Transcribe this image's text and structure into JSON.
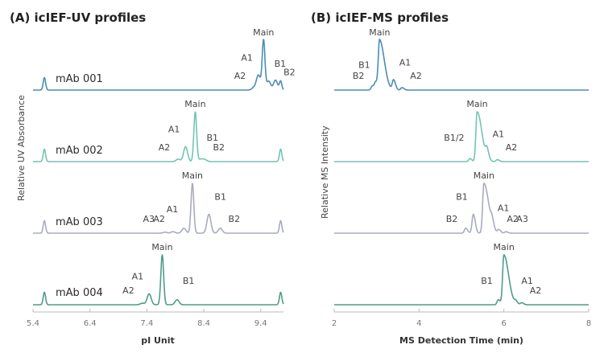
{
  "chart_data": [
    {
      "type": "line",
      "title": "(A) icIEF-UV profiles",
      "xlabel": "pI Unit",
      "ylabel": "Relative UV Absorbance",
      "xlim": [
        5.4,
        9.8
      ],
      "xticks": [
        "5.4",
        "6.4",
        "7.4",
        "8.4",
        "9.4"
      ],
      "xtick_values": [
        5.4,
        6.4,
        7.4,
        8.4,
        9.4
      ],
      "grid": false,
      "series": [
        {
          "name": "mAb 001",
          "color": "#4a8db5",
          "markers": [
            {
              "x": 5.6,
              "h": 0.25
            },
            {
              "x": 9.75,
              "h": 0.18
            }
          ],
          "peaks": [
            {
              "label": "A2",
              "x": 9.28,
              "h": 0.05
            },
            {
              "label": "A1",
              "x": 9.36,
              "h": 0.3
            },
            {
              "label": "Main",
              "x": 9.45,
              "h": 1.0
            },
            {
              "label": "B1",
              "x": 9.54,
              "h": 0.18
            },
            {
              "label": "B2",
              "x": 9.66,
              "h": 0.2
            }
          ]
        },
        {
          "name": "mAb 002",
          "color": "#72c4b3",
          "markers": [
            {
              "x": 5.6,
              "h": 0.25
            },
            {
              "x": 9.75,
              "h": 0.25
            }
          ],
          "peaks": [
            {
              "label": "A2",
              "x": 7.95,
              "h": 0.05
            },
            {
              "label": "A1",
              "x": 8.08,
              "h": 0.3
            },
            {
              "label": "Main",
              "x": 8.25,
              "h": 1.0
            },
            {
              "label": "B1",
              "x": 8.35,
              "h": 0.05
            },
            {
              "label": "B2",
              "x": 8.42,
              "h": 0.04
            }
          ]
        },
        {
          "name": "mAb 003",
          "color": "#a8acbd",
          "markers": [
            {
              "x": 5.6,
              "h": 0.25
            },
            {
              "x": 9.75,
              "h": 0.25
            }
          ],
          "peaks": [
            {
              "label": "A3",
              "x": 7.72,
              "h": 0.02
            },
            {
              "label": "A2",
              "x": 7.86,
              "h": 0.03
            },
            {
              "label": "A1",
              "x": 8.05,
              "h": 0.1
            },
            {
              "label": "Main",
              "x": 8.2,
              "h": 1.0
            },
            {
              "label": "B1",
              "x": 8.49,
              "h": 0.38
            },
            {
              "label": "B2",
              "x": 8.69,
              "h": 0.1
            }
          ]
        },
        {
          "name": "mAb 004",
          "color": "#4f9c88",
          "markers": [
            {
              "x": 5.6,
              "h": 0.25
            },
            {
              "x": 9.75,
              "h": 0.25
            }
          ],
          "peaks": [
            {
              "label": "A2",
              "x": 7.32,
              "h": 0.03
            },
            {
              "label": "A1",
              "x": 7.44,
              "h": 0.22
            },
            {
              "label": "Main",
              "x": 7.67,
              "h": 1.0
            },
            {
              "label": "B1",
              "x": 7.93,
              "h": 0.1
            }
          ]
        }
      ]
    },
    {
      "type": "line",
      "title": "(B) icIEF-MS profiles",
      "xlabel": "MS Detection Time (min)",
      "ylabel": "Relative MS Intensity",
      "xlim": [
        2,
        8
      ],
      "xticks": [
        "2",
        "4",
        "6",
        "8"
      ],
      "xtick_values": [
        2,
        4,
        6,
        8
      ],
      "grid": false,
      "series": [
        {
          "name": "mAb 001",
          "color": "#4a8db5",
          "peaks": [
            {
              "label": "B2",
              "x": 2.9,
              "h": 0.08
            },
            {
              "label": "B1",
              "x": 2.98,
              "h": 0.15
            },
            {
              "label": "Main",
              "x": 3.07,
              "h": 1.0
            },
            {
              "label": "A1",
              "x": 3.4,
              "h": 0.2
            },
            {
              "label": "A2",
              "x": 3.6,
              "h": 0.05
            }
          ]
        },
        {
          "name": "mAb 002",
          "color": "#72c4b3",
          "peaks": [
            {
              "label": "B1/2",
              "x": 5.2,
              "h": 0.06
            },
            {
              "label": "Main",
              "x": 5.37,
              "h": 1.0
            },
            {
              "label": "A1",
              "x": 5.6,
              "h": 0.2
            },
            {
              "label": "A2",
              "x": 5.85,
              "h": 0.04
            }
          ]
        },
        {
          "name": "mAb 003",
          "color": "#a8acbd",
          "peaks": [
            {
              "label": "B2",
              "x": 5.1,
              "h": 0.1
            },
            {
              "label": "B1",
              "x": 5.28,
              "h": 0.38
            },
            {
              "label": "Main",
              "x": 5.53,
              "h": 1.0
            },
            {
              "label": "A1",
              "x": 5.72,
              "h": 0.15
            },
            {
              "label": "A2",
              "x": 5.88,
              "h": 0.07
            },
            {
              "label": "A3",
              "x": 6.05,
              "h": 0.03
            }
          ]
        },
        {
          "name": "mAb 004",
          "color": "#4f9c88",
          "peaks": [
            {
              "label": "B1",
              "x": 5.87,
              "h": 0.1
            },
            {
              "label": "Main",
              "x": 6.0,
              "h": 1.0
            },
            {
              "label": "A1",
              "x": 6.28,
              "h": 0.06
            },
            {
              "label": "A2",
              "x": 6.42,
              "h": 0.04
            }
          ]
        }
      ]
    }
  ]
}
